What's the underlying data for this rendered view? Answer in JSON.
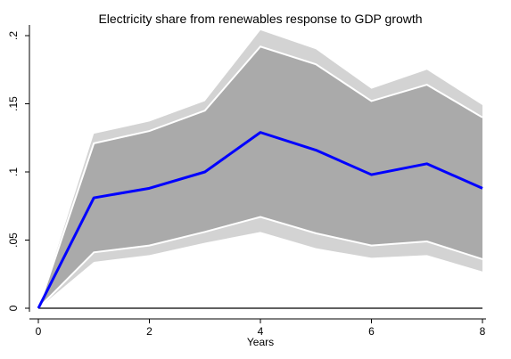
{
  "chart_data": {
    "type": "line",
    "title": "Electricity share from renewables response to GDP growth",
    "xlabel": "Years",
    "ylabel": "",
    "x": [
      0,
      1,
      2,
      3,
      4,
      5,
      6,
      7,
      8
    ],
    "xlim": [
      0,
      8
    ],
    "ylim": [
      0,
      0.2
    ],
    "xticks": [
      0,
      2,
      4,
      6,
      8
    ],
    "xtick_labels": [
      "0",
      "2",
      "4",
      "6",
      "8"
    ],
    "yticks": [
      0,
      0.05,
      0.1,
      0.15,
      0.2
    ],
    "ytick_labels": [
      "0",
      ".05",
      ".1",
      ".15",
      ".2"
    ],
    "grid": false,
    "series": [
      {
        "role": "irf",
        "values": [
          0,
          0.081,
          0.088,
          0.1,
          0.129,
          0.116,
          0.098,
          0.106,
          0.088
        ],
        "color": "#0000ff"
      },
      {
        "role": "inner-band-upper",
        "values": [
          0,
          0.121,
          0.13,
          0.145,
          0.192,
          0.179,
          0.152,
          0.164,
          0.14
        ],
        "color": "#ffffff"
      },
      {
        "role": "inner-band-lower",
        "values": [
          0,
          0.041,
          0.046,
          0.056,
          0.067,
          0.055,
          0.046,
          0.049,
          0.036
        ],
        "color": "#ffffff"
      },
      {
        "role": "outer-band-upper",
        "values": [
          0,
          0.128,
          0.137,
          0.152,
          0.204,
          0.19,
          0.161,
          0.175,
          0.149
        ]
      },
      {
        "role": "outer-band-lower",
        "values": [
          0,
          0.034,
          0.039,
          0.048,
          0.056,
          0.044,
          0.037,
          0.039,
          0.027
        ]
      }
    ],
    "colors": {
      "inner_band_fill": "#aaaaaa",
      "outer_band_fill": "#d3d3d3",
      "band_edge": "#ffffff",
      "irf_line": "#0000ff",
      "zero_line": "#000000"
    }
  }
}
